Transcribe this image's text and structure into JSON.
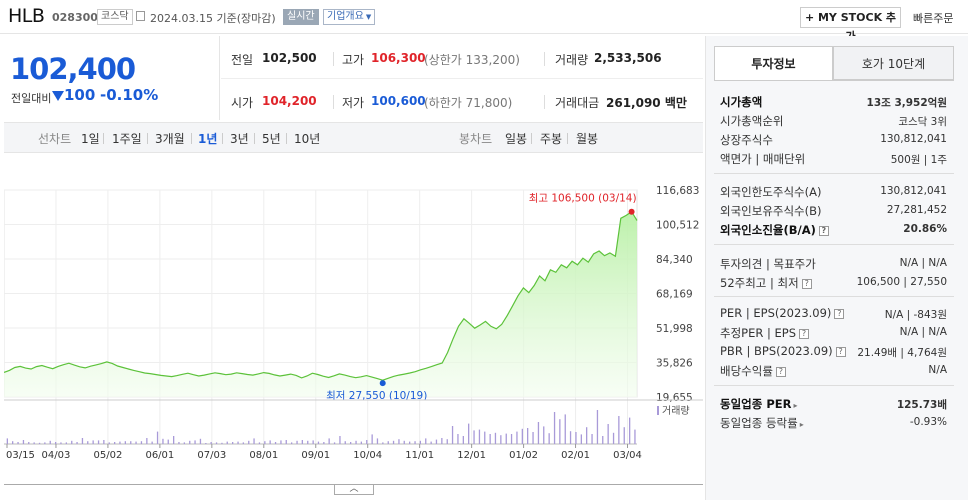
{
  "header": {
    "name": "HLB",
    "code": "028300",
    "market": "코스닥",
    "date": "2024.03.15 기준(장마감)",
    "realtime": "실시간",
    "overview": "기업개요",
    "mystock": "+ MY STOCK 추가",
    "quick_order": "빠른주문"
  },
  "price": {
    "current": "102,400",
    "prev_label": "전일대비",
    "change": "100",
    "change_pct": "-0.10%"
  },
  "stats": {
    "prev_label": "전일",
    "prev": "102,500",
    "high_label": "고가",
    "high": "106,300",
    "upper_limit": "(상한가 133,200)",
    "volume_label": "거래량",
    "volume": "2,533,506",
    "open_label": "시가",
    "open": "104,200",
    "low_label": "저가",
    "low": "100,600",
    "lower_limit": "(하한가 71,800)",
    "amount_label": "거래대금",
    "amount": "261,090 백만"
  },
  "period_bar": {
    "line_chart": "선차트",
    "line_options": [
      "1일",
      "1주일",
      "3개월",
      "1년",
      "3년",
      "5년",
      "10년"
    ],
    "selected": "1년",
    "candle_chart": "봉차트",
    "candle_options": [
      "일봉",
      "주봉",
      "월봉"
    ]
  },
  "chart_data": {
    "type": "area",
    "y_ticks": [
      "116,683",
      "100,512",
      "84,340",
      "68,169",
      "51,998",
      "35,826",
      "19,655"
    ],
    "ylim": [
      19655,
      116683
    ],
    "x_ticks": [
      "03/15",
      "04/03",
      "05/02",
      "06/01",
      "07/03",
      "08/01",
      "09/01",
      "10/04",
      "11/01",
      "12/01",
      "01/02",
      "02/01",
      "03/04"
    ],
    "annotations": {
      "high": "최고 106,500 (03/14)",
      "low": "최저 27,550 (10/19)"
    },
    "volume_label": "거래량",
    "series": [
      {
        "values": [
          31200,
          32100,
          33500,
          34000,
          33200,
          32800,
          33900,
          34400,
          33600,
          32900,
          34000,
          34800,
          35500,
          34600,
          33800,
          33300,
          34100,
          34700,
          35300,
          36100,
          35400,
          34200,
          33500,
          32800,
          32100,
          31500,
          30900,
          30600,
          30200,
          29800,
          29500,
          29200,
          29700,
          30300,
          30800,
          30100,
          29500,
          29900,
          30500,
          31000,
          30600,
          30100,
          30400,
          31000,
          30600,
          30200,
          29900,
          30500,
          31100,
          30700,
          30000,
          29500,
          29900,
          30400,
          29800,
          28600,
          29500,
          30800,
          30200,
          29400,
          28800,
          29600,
          30500,
          29900,
          29200,
          28700,
          29100,
          29700,
          29000,
          28300,
          27550,
          28400,
          29300,
          29900,
          30400,
          30900,
          31500,
          32400,
          33100,
          33900,
          34800,
          35600,
          40500,
          47000,
          52800,
          56300,
          54200,
          51900,
          53400,
          55100,
          52800,
          51600,
          53700,
          57800,
          62400,
          67100,
          70800,
          68600,
          71900,
          76400,
          74100,
          79300,
          78100,
          81600,
          80200,
          83300,
          81600,
          84700,
          82900,
          86800,
          88100,
          85900,
          87200,
          85600,
          103400,
          104800,
          106500,
          102400
        ]
      }
    ],
    "volume": [
      0.14,
      0.07,
      0.05,
      0.1,
      0.05,
      0.04,
      0.03,
      0.04,
      0.08,
      0.05,
      0.04,
      0.04,
      0.08,
      0.05,
      0.15,
      0.07,
      0.09,
      0.09,
      0.1,
      0.04,
      0.05,
      0.06,
      0.07,
      0.07,
      0.06,
      0.07,
      0.15,
      0.06,
      0.31,
      0.13,
      0.11,
      0.2,
      0.05,
      0.04,
      0.08,
      0.09,
      0.13,
      0.02,
      0.05,
      0.04,
      0.03,
      0.06,
      0.05,
      0.06,
      0.04,
      0.08,
      0.14,
      0.04,
      0.07,
      0.09,
      0.05,
      0.09,
      0.1,
      0.04,
      0.08,
      0.1,
      0.08,
      0.09,
      0.06,
      0.05,
      0.14,
      0.04,
      0.2,
      0.07,
      0.05,
      0.08,
      0.06,
      0.1,
      0.24,
      0.14,
      0.04,
      0.07,
      0.08,
      0.12,
      0.08,
      0.06,
      0.07,
      0.08,
      0.14,
      0.06,
      0.11,
      0.15,
      0.12,
      0.45,
      0.25,
      0.2,
      0.51,
      0.34,
      0.36,
      0.31,
      0.25,
      0.28,
      0.22,
      0.26,
      0.25,
      0.31,
      0.38,
      0.4,
      0.3,
      0.55,
      0.44,
      0.27,
      0.8,
      0.62,
      0.74,
      0.32,
      0.3,
      0.24,
      0.42,
      0.25,
      0.85,
      0.2,
      0.5,
      0.28,
      0.7,
      0.42,
      0.66,
      0.36
    ]
  },
  "right_panel": {
    "tab_invest": "투자정보",
    "tab_quote": "호가 10단계",
    "market_cap_label": "시가총액",
    "market_cap": "13조 3,952억원",
    "cap_rank_label": "시가총액순위",
    "cap_rank": "코스닥 3위",
    "listed_shares_label": "상장주식수",
    "listed_shares": "130,812,041",
    "par_label": "액면가 | 매매단위",
    "par": "500원 | 1주",
    "foreign_limit_label": "외국인한도주식수(A)",
    "foreign_limit": "130,812,041",
    "foreign_hold_label": "외국인보유주식수(B)",
    "foreign_hold": "27,281,452",
    "foreign_ratio_label": "외국인소진율(B/A)",
    "foreign_ratio": "20.86%",
    "opinion_label": "투자의견 | 목표주가",
    "opinion": "N/A | N/A",
    "week52_label": "52주최고 | 최저",
    "week52": "106,500 | 27,550",
    "per_label": "PER | EPS(2023.09)",
    "per": "N/A | -843원",
    "est_per_label": "추정PER | EPS",
    "est_per": "N/A | N/A",
    "pbr_label": "PBR | BPS(2023.09)",
    "pbr": "21.49배 | 4,764원",
    "div_label": "배당수익률",
    "div": "N/A",
    "ind_per_label": "동일업종 PER",
    "ind_per": "125.73배",
    "ind_rate_label": "동일업종 등락률",
    "ind_rate": "-0.93%"
  }
}
